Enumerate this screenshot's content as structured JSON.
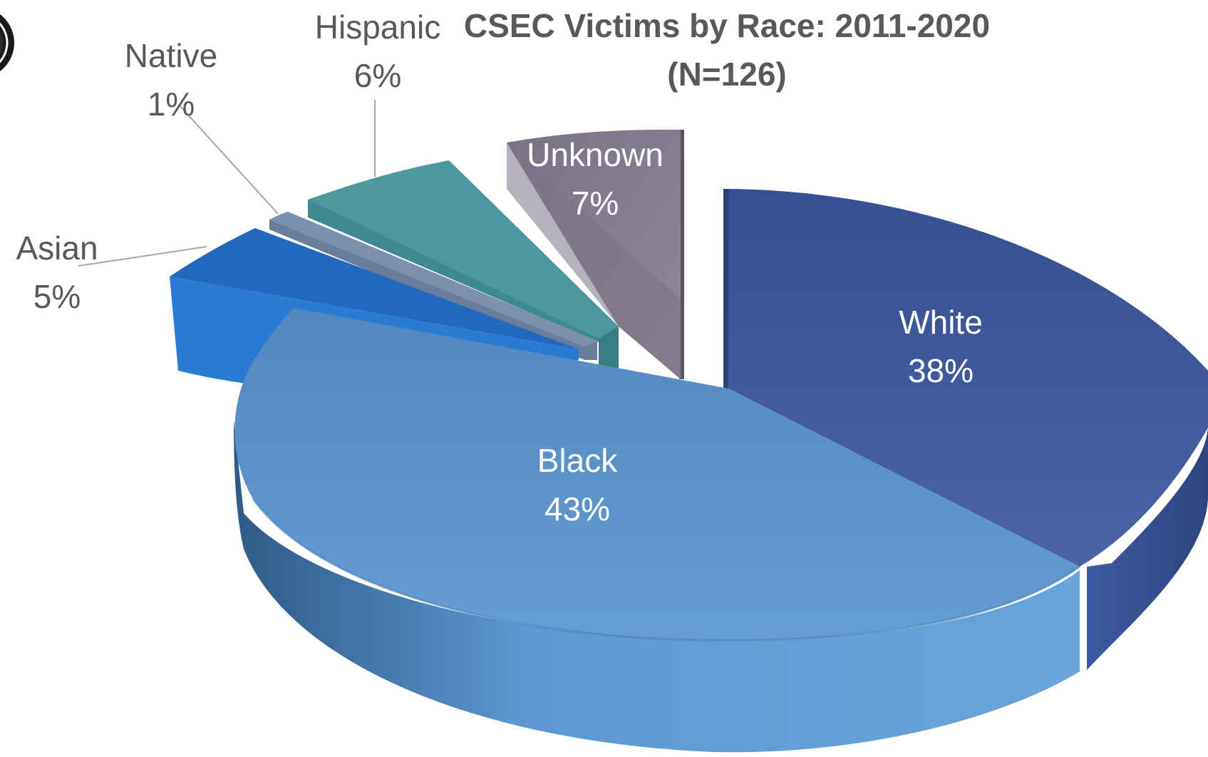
{
  "chart_data": {
    "type": "pie",
    "title": "CSEC Victims by Race: 2011-2020",
    "subtitle": "(N=126)",
    "style": "3d-exploded",
    "legend": "none",
    "slices": [
      {
        "name": "White",
        "value": 38,
        "label": "38%",
        "color": "#3f5b9e"
      },
      {
        "name": "Black",
        "value": 43,
        "label": "43%",
        "color": "#5b92c8"
      },
      {
        "name": "Asian",
        "value": 5,
        "label": "5%",
        "color": "#2e7fd4"
      },
      {
        "name": "Native",
        "value": 1,
        "label": "1%",
        "color": "#7b8fae"
      },
      {
        "name": "Hispanic",
        "value": 6,
        "label": "6%",
        "color": "#4e9aa3"
      },
      {
        "name": "Unknown",
        "value": 7,
        "label": "7%",
        "color": "#857d8f"
      }
    ]
  }
}
